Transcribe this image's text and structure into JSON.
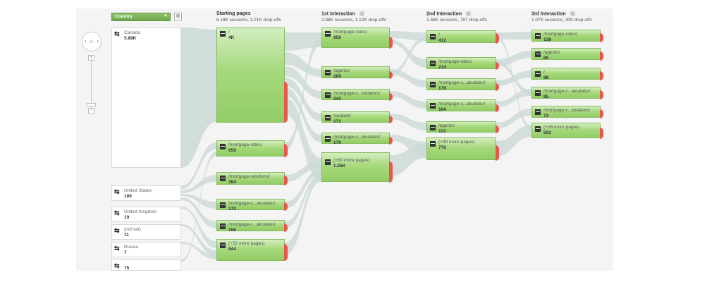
{
  "toolbar": {
    "dimension_label": "Country",
    "dropdown_icon": "caret-down-icon",
    "settings_icon": "gear-icon"
  },
  "nav": {
    "zoom_in": "+",
    "zoom_out": "-"
  },
  "columns": [
    {
      "title": "Starting pages",
      "stats": "6.18K sessions, 3.21K drop-offs"
    },
    {
      "title": "1st Interaction",
      "stats": "2.98K sessions, 1.12K drop-offs"
    },
    {
      "title": "2nd Interaction",
      "stats": "1.86K sessions, 787 drop-offs"
    },
    {
      "title": "3rd Interaction",
      "stats": "1.07K sessions, 309 drop-offs"
    }
  ],
  "countries": [
    {
      "name": "Canada",
      "value": "5.88K"
    },
    {
      "name": "United States",
      "value": "189"
    },
    {
      "name": "United Kingdom",
      "value": "19"
    },
    {
      "name": "(not set)",
      "value": "11"
    },
    {
      "name": "Russia",
      "value": "7"
    },
    {
      "name": "",
      "value": "75"
    }
  ],
  "starting_pages": [
    {
      "label": "/",
      "value": "4K",
      "drop": "8"
    },
    {
      "label": "/mortgage-rates/",
      "value": "659",
      "drop": "8"
    },
    {
      "label": "/mortgage-solutions/",
      "value": "354",
      "drop": ""
    },
    {
      "label": "/mortgage-c...alculator/",
      "value": "172",
      "drop": ""
    },
    {
      "label": "/mortgage-c...alculator/",
      "value": "156",
      "drop": ""
    },
    {
      "label": "(+52 more pages)",
      "value": "844",
      "drop": ""
    }
  ],
  "interaction1": [
    {
      "label": "/mortgage-rates/",
      "value": "856"
    },
    {
      "label": "/agents/",
      "value": "289"
    },
    {
      "label": "/mortgage-c...lculators/",
      "value": "243"
    },
    {
      "label": "/contact/",
      "value": "171"
    },
    {
      "label": "/mortgage-c...alculator/",
      "value": "170"
    },
    {
      "label": "(+80 more pages)",
      "value": "1.25K"
    }
  ],
  "interaction2": [
    {
      "label": "/",
      "value": "412"
    },
    {
      "label": "/mortgage-rates/",
      "value": "214"
    },
    {
      "label": "/mortgage-c...alculator/",
      "value": "179"
    },
    {
      "label": "/mortgage-c...alculator/",
      "value": "164"
    },
    {
      "label": "/agents/",
      "value": "113"
    },
    {
      "label": "(+49 more pages)",
      "value": "776"
    }
  ],
  "interaction3": [
    {
      "label": "/mortgage-rates/",
      "value": "138"
    },
    {
      "label": "/agents/",
      "value": "95"
    },
    {
      "label": "/",
      "value": "88"
    },
    {
      "label": "/mortgage-c...alculator/",
      "value": "85"
    },
    {
      "label": "/mortgage-c...lculators/",
      "value": "73"
    },
    {
      "label": "(+26 more pages)",
      "value": "502"
    }
  ],
  "colors": {
    "node_green": "#92cd66",
    "drop_off": "#e8584a",
    "flow": "#c9d8d6",
    "background": "#f4f4f4"
  }
}
